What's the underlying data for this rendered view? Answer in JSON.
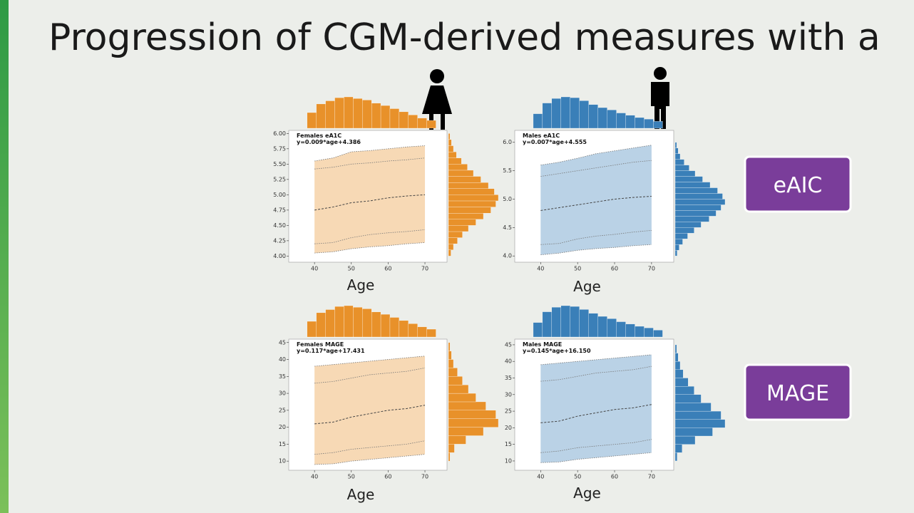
{
  "title": "Progression of CGM-derived measures with a",
  "labels": [
    "eAIC",
    "MAGE"
  ],
  "chart_data": [
    {
      "type": "line",
      "annotations": [
        "Females eA1C",
        "y=0.009*age+4.386"
      ],
      "xlabel": "Age",
      "color": "#e8912a",
      "x": [
        40,
        45,
        50,
        55,
        60,
        65,
        70
      ],
      "series": [
        {
          "values": [
            5.55,
            5.6,
            5.7,
            5.72,
            5.75,
            5.78,
            5.8
          ]
        },
        {
          "values": [
            5.42,
            5.45,
            5.5,
            5.52,
            5.55,
            5.57,
            5.6
          ]
        },
        {
          "values": [
            4.75,
            4.8,
            4.87,
            4.9,
            4.95,
            4.98,
            5.0
          ]
        },
        {
          "values": [
            4.2,
            4.22,
            4.3,
            4.35,
            4.38,
            4.4,
            4.43
          ]
        },
        {
          "values": [
            4.05,
            4.07,
            4.12,
            4.15,
            4.17,
            4.2,
            4.22
          ]
        }
      ],
      "xlim": [
        33,
        76
      ],
      "xticks": [
        40,
        50,
        60,
        70
      ],
      "ylim": [
        3.9,
        6.05
      ],
      "yticks": [
        {
          "value": 4,
          "label": "4.00"
        },
        4.25,
        {
          "value": 4.5,
          "label": "4.50"
        },
        4.75,
        {
          "value": 5,
          "label": "5.00"
        },
        5.25,
        {
          "value": 5.5,
          "label": "5.50"
        },
        5.75,
        {
          "value": 6,
          "label": "6.00"
        }
      ],
      "x_hist": {
        "bins": [
          38,
          40.5,
          43,
          45.5,
          48,
          50.5,
          53,
          55.5,
          58,
          60.5,
          63,
          65.5,
          68,
          70.5,
          73
        ],
        "counts": [
          40,
          62,
          70,
          78,
          80,
          76,
          72,
          64,
          58,
          50,
          42,
          34,
          26,
          20
        ]
      },
      "y_hist": {
        "bins": [
          4.0,
          4.1,
          4.2,
          4.3,
          4.4,
          4.5,
          4.6,
          4.7,
          4.8,
          4.9,
          5.0,
          5.1,
          5.2,
          5.3,
          5.4,
          5.5,
          5.6,
          5.7,
          5.8,
          5.9,
          6.0
        ],
        "counts": [
          5,
          10,
          18,
          28,
          40,
          55,
          70,
          85,
          95,
          100,
          92,
          80,
          65,
          50,
          38,
          26,
          16,
          10,
          6,
          3
        ]
      }
    },
    {
      "type": "line",
      "annotations": [
        "Males eA1C",
        "y=0.007*age+4.555"
      ],
      "xlabel": "Age",
      "color": "#3a7fb8",
      "x": [
        40,
        45,
        50,
        55,
        60,
        65,
        70
      ],
      "series": [
        {
          "values": [
            5.6,
            5.65,
            5.72,
            5.8,
            5.85,
            5.9,
            5.95
          ]
        },
        {
          "values": [
            5.4,
            5.45,
            5.5,
            5.55,
            5.6,
            5.65,
            5.68
          ]
        },
        {
          "values": [
            4.8,
            4.85,
            4.9,
            4.95,
            5.0,
            5.03,
            5.05
          ]
        },
        {
          "values": [
            4.2,
            4.22,
            4.3,
            4.35,
            4.38,
            4.42,
            4.45
          ]
        },
        {
          "values": [
            4.02,
            4.05,
            4.1,
            4.13,
            4.15,
            4.18,
            4.2
          ]
        }
      ],
      "xlim": [
        33,
        76
      ],
      "xticks": [
        40,
        50,
        60,
        70
      ],
      "ylim": [
        3.89,
        6.21
      ],
      "yticks": [
        {
          "value": 4,
          "label": "4.0"
        },
        4.5,
        {
          "value": 5,
          "label": "5.0"
        },
        5.5,
        {
          "value": 6,
          "label": "6.0"
        }
      ],
      "x_hist": {
        "bins": [
          38,
          40.5,
          43,
          45.5,
          48,
          50.5,
          53,
          55.5,
          58,
          60.5,
          63,
          65.5,
          68,
          70.5,
          73
        ],
        "counts": [
          38,
          66,
          78,
          82,
          80,
          72,
          62,
          54,
          48,
          40,
          34,
          28,
          24,
          18
        ]
      },
      "y_hist": {
        "bins": [
          4.0,
          4.1,
          4.2,
          4.3,
          4.4,
          4.5,
          4.6,
          4.7,
          4.8,
          4.9,
          5.0,
          5.1,
          5.2,
          5.3,
          5.4,
          5.5,
          5.6,
          5.7,
          5.8,
          5.9,
          6.0
        ],
        "counts": [
          4,
          8,
          15,
          25,
          38,
          52,
          68,
          82,
          92,
          100,
          95,
          85,
          70,
          55,
          40,
          28,
          18,
          10,
          6,
          3
        ]
      }
    },
    {
      "type": "line",
      "annotations": [
        "Females MAGE",
        "y=0.117*age+17.431"
      ],
      "xlabel": "Age",
      "color": "#e8912a",
      "x": [
        40,
        45,
        50,
        55,
        60,
        65,
        70
      ],
      "series": [
        {
          "values": [
            38,
            38.5,
            39,
            39.5,
            40,
            40.5,
            41
          ]
        },
        {
          "values": [
            33,
            33.5,
            34.5,
            35.5,
            36,
            36.5,
            37.5
          ]
        },
        {
          "values": [
            21,
            21.5,
            23,
            24,
            25,
            25.5,
            26.5
          ]
        },
        {
          "values": [
            12,
            12.5,
            13.5,
            14,
            14.5,
            15,
            16
          ]
        },
        {
          "values": [
            9,
            9.2,
            10,
            10.5,
            11,
            11.5,
            12
          ]
        }
      ],
      "xlim": [
        33,
        76
      ],
      "xticks": [
        40,
        50,
        60,
        70
      ],
      "ylim": [
        7.3,
        46
      ],
      "yticks": [
        10,
        15,
        20,
        25,
        30,
        35,
        40,
        45
      ],
      "x_hist": {
        "bins": [
          38,
          40.5,
          43,
          45.5,
          48,
          50.5,
          53,
          55.5,
          58,
          60.5,
          63,
          65.5,
          68,
          70.5,
          73
        ],
        "counts": [
          40,
          62,
          70,
          78,
          80,
          76,
          72,
          64,
          58,
          50,
          42,
          34,
          26,
          20
        ]
      },
      "y_hist": {
        "bins": [
          10,
          12.5,
          15,
          17.5,
          20,
          22.5,
          25,
          27.5,
          30,
          32.5,
          35,
          37.5,
          40,
          42.5,
          45
        ],
        "counts": [
          3,
          12,
          35,
          70,
          100,
          95,
          75,
          55,
          40,
          28,
          18,
          10,
          6,
          3
        ]
      }
    },
    {
      "type": "line",
      "annotations": [
        "Males MAGE",
        "y=0.145*age+16.150"
      ],
      "xlabel": "Age",
      "color": "#3a7fb8",
      "x": [
        40,
        45,
        50,
        55,
        60,
        65,
        70
      ],
      "series": [
        {
          "values": [
            39,
            39.5,
            40,
            40.5,
            41,
            41.5,
            42
          ]
        },
        {
          "values": [
            34,
            34.5,
            35.5,
            36.5,
            37,
            37.5,
            38.5
          ]
        },
        {
          "values": [
            21.5,
            22,
            23.5,
            24.5,
            25.5,
            26,
            27
          ]
        },
        {
          "values": [
            12.5,
            13,
            14,
            14.5,
            15,
            15.5,
            16.5
          ]
        },
        {
          "values": [
            9.5,
            9.7,
            10.5,
            11,
            11.5,
            12,
            12.5
          ]
        }
      ],
      "xlim": [
        33,
        76
      ],
      "xticks": [
        40,
        50,
        60,
        70
      ],
      "ylim": [
        7.2,
        46.7
      ],
      "yticks": [
        10,
        15,
        20,
        25,
        30,
        35,
        40,
        45
      ],
      "x_hist": {
        "bins": [
          38,
          40.5,
          43,
          45.5,
          48,
          50.5,
          53,
          55.5,
          58,
          60.5,
          63,
          65.5,
          68,
          70.5,
          73
        ],
        "counts": [
          38,
          66,
          78,
          82,
          80,
          72,
          62,
          54,
          48,
          40,
          34,
          28,
          24,
          18
        ]
      },
      "y_hist": {
        "bins": [
          10,
          12.5,
          15,
          17.5,
          20,
          22.5,
          25,
          27.5,
          30,
          32.5,
          35,
          37.5,
          40,
          42.5,
          45
        ],
        "counts": [
          4,
          14,
          40,
          75,
          100,
          92,
          72,
          52,
          38,
          26,
          16,
          10,
          6,
          3
        ]
      }
    }
  ]
}
